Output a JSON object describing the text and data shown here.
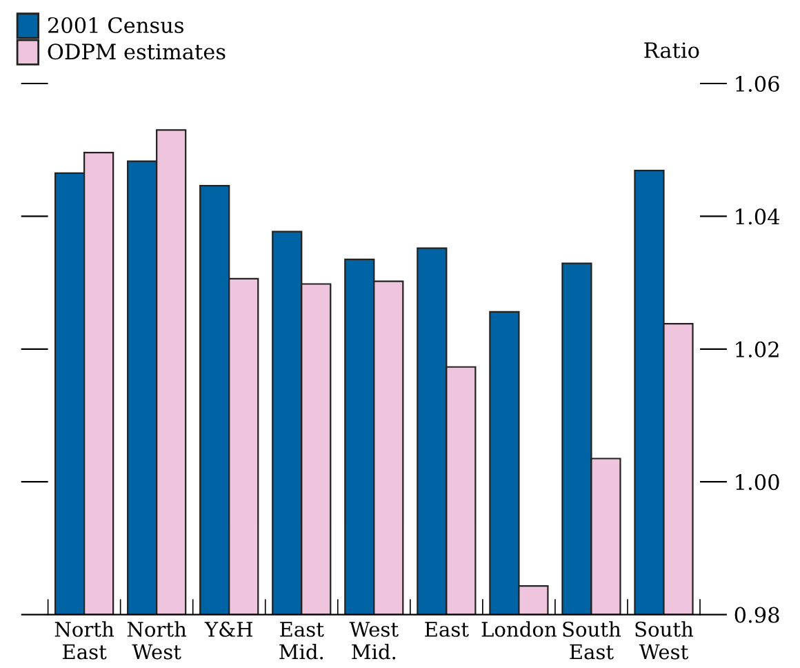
{
  "chart_data": {
    "type": "bar",
    "ylabel": "Ratio",
    "categories": [
      "North\nEast",
      "North\nWest",
      "Y&H",
      "East\nMid.",
      "West\nMid.",
      "East",
      "London",
      "South\nEast",
      "South\nWest"
    ],
    "series": [
      {
        "name": "2001 Census",
        "color": "#0063a3",
        "values": [
          1.0465,
          1.0483,
          1.0446,
          1.0377,
          1.0335,
          1.0352,
          1.0256,
          1.0329,
          1.0469
        ]
      },
      {
        "name": "ODPM estimates",
        "color": "#efc5de",
        "values": [
          1.0496,
          1.053,
          1.0306,
          1.0298,
          1.0302,
          1.0173,
          0.9843,
          1.0035,
          1.0238
        ]
      }
    ],
    "ylim": [
      0.98,
      1.06
    ],
    "yticks": [
      {
        "value": 0.98,
        "label": "0.98"
      },
      {
        "value": 1.0,
        "label": "1.00"
      },
      {
        "value": 1.02,
        "label": "1.02"
      },
      {
        "value": 1.04,
        "label": "1.04"
      },
      {
        "value": 1.06,
        "label": "1.06"
      }
    ],
    "grid": false,
    "legend": "top left"
  }
}
